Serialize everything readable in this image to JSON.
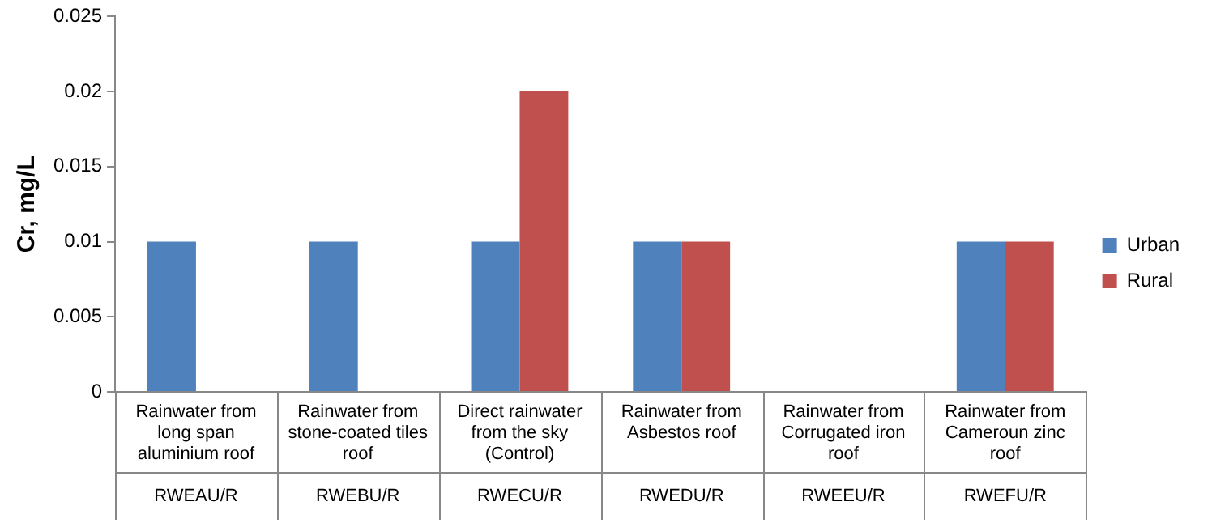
{
  "chart_data": {
    "type": "bar",
    "ylabel": "Cr, mg/L",
    "categories": [
      "Rainwater from long span aluminium roof\nRWEAU/R",
      "Rainwater from stone-coated tiles roof\nRWEBU/R",
      "Direct rainwater from the sky (Control)\nRWECU/R",
      "Rainwater from Asbestos roof\nRWEDU/R",
      "Rainwater from Corrugated iron roof\nRWEEU/R",
      "Rainwater from Cameroun zinc roof\nRWEFU/R"
    ],
    "series": [
      {
        "name": "Urban",
        "color": "#4f81bd",
        "values": [
          0.01,
          0.01,
          0.01,
          0.01,
          null,
          0.01
        ]
      },
      {
        "name": "Rural",
        "color": "#c0504d",
        "values": [
          null,
          null,
          0.02,
          0.01,
          null,
          0.01
        ]
      }
    ],
    "ylim": [
      0,
      0.025
    ],
    "yticks": [
      0,
      0.005,
      0.01,
      0.015,
      0.02,
      0.025
    ],
    "grid": false,
    "legend": "right"
  }
}
